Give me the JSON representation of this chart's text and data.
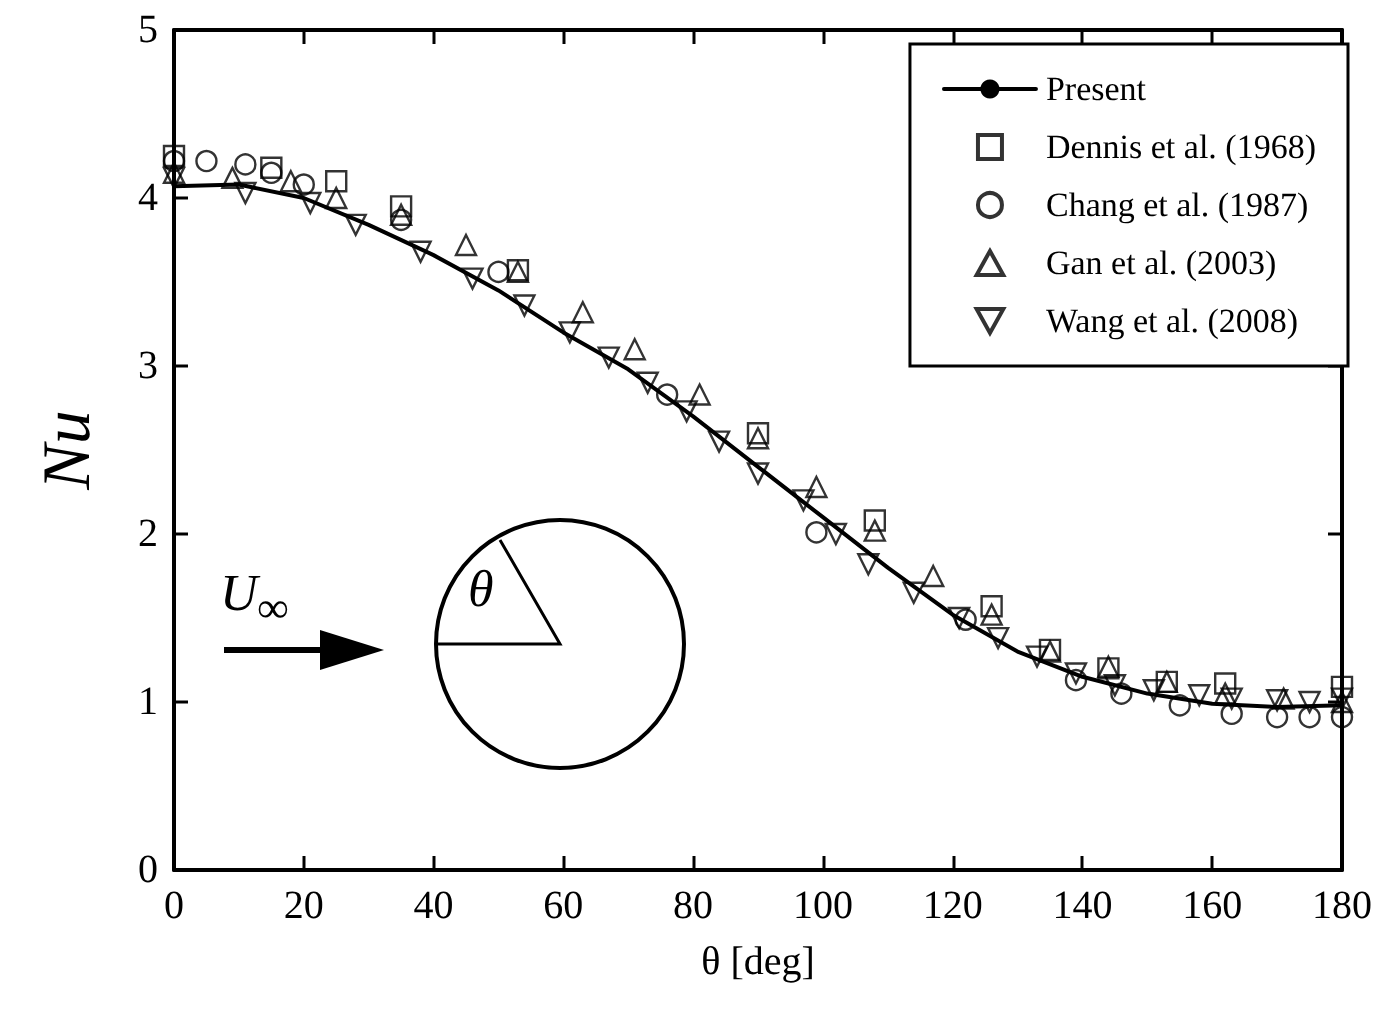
{
  "chart_data": {
    "type": "scatter",
    "xlabel": "θ [deg]",
    "ylabel": "Nu",
    "xlim": [
      0,
      180
    ],
    "xticks": [
      0,
      20,
      40,
      60,
      80,
      100,
      120,
      140,
      160,
      180
    ],
    "ylim": [
      0,
      5
    ],
    "yticks": [
      0,
      1,
      2,
      3,
      4,
      5
    ],
    "grid": false,
    "legend": "top right",
    "annotations": [
      "U$_{∞}$",
      "θ"
    ],
    "series": [
      {
        "name": "Present",
        "type": "line",
        "color": "#000000",
        "marker": "none",
        "line_style": "solid",
        "x": [
          0,
          10,
          20,
          30,
          40,
          50,
          60,
          70,
          80,
          90,
          100,
          110,
          120,
          130,
          140,
          150,
          160,
          170,
          180
        ],
        "values": [
          4.07,
          4.08,
          4.0,
          3.84,
          3.66,
          3.45,
          3.2,
          2.98,
          2.7,
          2.4,
          2.1,
          1.8,
          1.52,
          1.3,
          1.15,
          1.05,
          0.99,
          0.97,
          0.98
        ]
      },
      {
        "name": "Dennis et al. (1968)",
        "color": "#000000",
        "marker": "square",
        "x": [
          0,
          15,
          25,
          35,
          53,
          90,
          108,
          126,
          135,
          144,
          153,
          162,
          180
        ],
        "values": [
          4.25,
          4.18,
          4.1,
          3.95,
          3.57,
          2.6,
          2.08,
          1.57,
          1.31,
          1.2,
          1.12,
          1.11,
          1.09
        ]
      },
      {
        "name": "Chang et al. (1987)",
        "color": "#000000",
        "marker": "circle",
        "x": [
          0,
          5,
          11,
          15,
          20,
          35,
          50,
          76,
          99,
          122,
          139,
          146,
          155,
          163,
          170,
          175,
          180
        ],
        "values": [
          4.22,
          4.22,
          4.2,
          4.15,
          4.08,
          3.87,
          3.56,
          2.83,
          2.01,
          1.49,
          1.13,
          1.05,
          0.98,
          0.93,
          0.91,
          0.91,
          0.91
        ]
      },
      {
        "name": "Gan et al. (2003)",
        "color": "#000000",
        "marker": "triangle",
        "x": [
          0,
          9,
          18,
          25,
          35,
          45,
          53,
          63,
          71,
          81,
          90,
          99,
          108,
          117,
          126,
          135,
          144,
          153,
          162,
          171,
          180
        ],
        "values": [
          4.15,
          4.12,
          4.1,
          4.0,
          3.9,
          3.72,
          3.56,
          3.32,
          3.1,
          2.83,
          2.57,
          2.28,
          2.02,
          1.75,
          1.52,
          1.3,
          1.21,
          1.12,
          1.05,
          1.02,
          1.0
        ]
      },
      {
        "name": "Wang et al. (2008)",
        "color": "#000000",
        "marker": "triangle-down",
        "x": [
          0,
          11,
          21,
          28,
          38,
          46,
          54,
          61,
          67,
          73,
          79,
          84,
          90,
          97,
          102,
          107,
          114,
          121,
          127,
          133,
          139,
          145,
          151,
          158,
          163,
          170,
          175,
          180
        ],
        "values": [
          4.12,
          4.03,
          3.97,
          3.84,
          3.68,
          3.52,
          3.36,
          3.2,
          3.05,
          2.9,
          2.73,
          2.55,
          2.36,
          2.2,
          2.0,
          1.82,
          1.65,
          1.5,
          1.38,
          1.27,
          1.17,
          1.1,
          1.07,
          1.04,
          1.02,
          1.01,
          1.0,
          1.02
        ]
      }
    ]
  }
}
